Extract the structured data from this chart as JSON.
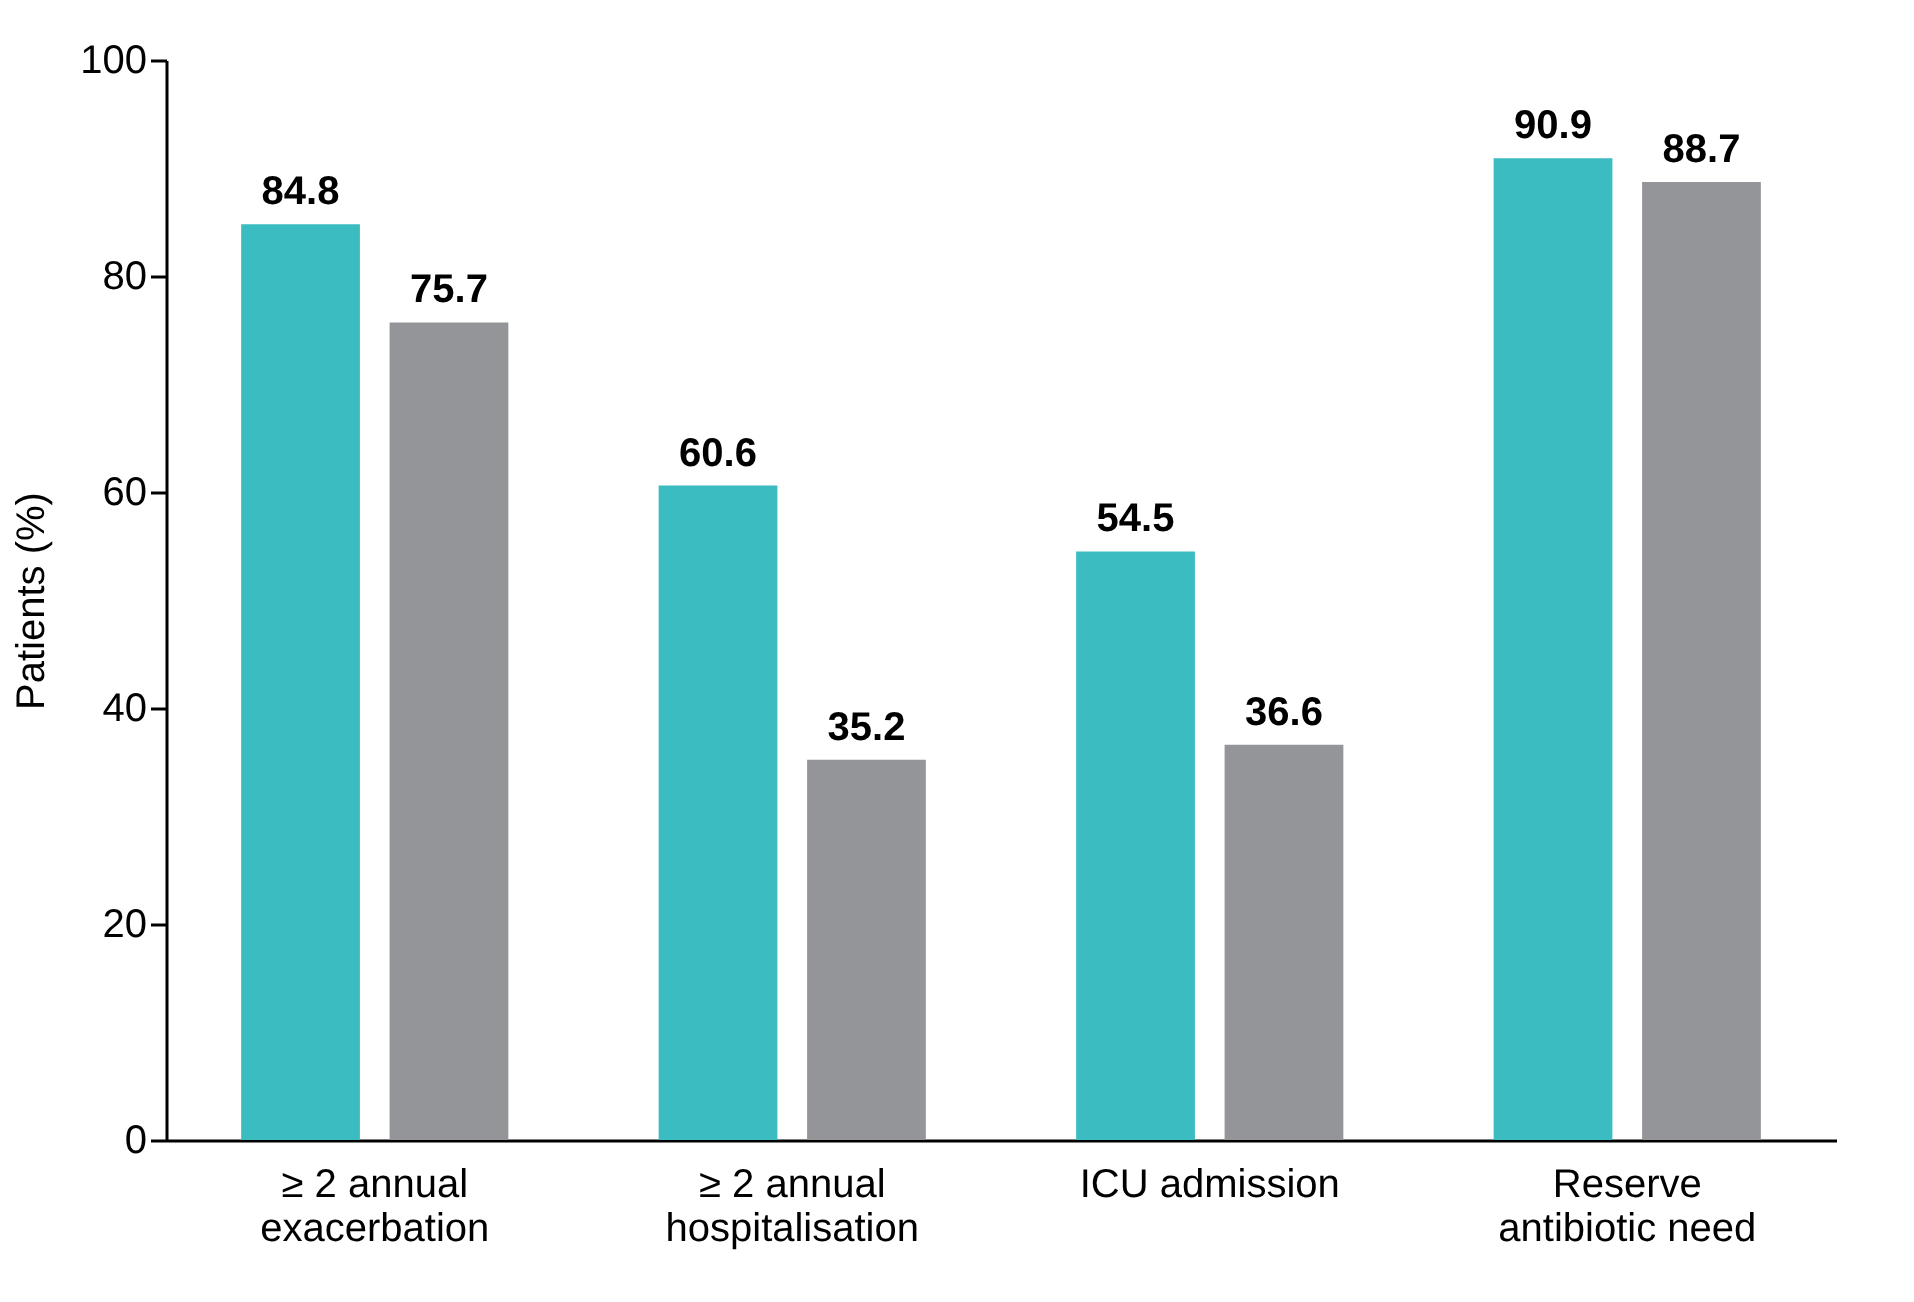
{
  "chart_data": {
    "type": "bar",
    "categories": [
      "≥ 2 annual exacerbation",
      "≥ 2 annual hospitalisation",
      "ICU admission",
      "Reserve antibiotic need"
    ],
    "series": [
      {
        "color": "#3bbcc1",
        "values": [
          84.8,
          60.6,
          54.5,
          90.9
        ]
      },
      {
        "color": "#939598",
        "values": [
          75.7,
          35.2,
          36.6,
          88.7
        ]
      }
    ],
    "ylabel": "Patients (%)",
    "ylim": [
      0,
      100
    ],
    "yticks": [
      0,
      20,
      40,
      60,
      80,
      100
    ],
    "data_labels": true,
    "grid": false,
    "legend": false
  }
}
